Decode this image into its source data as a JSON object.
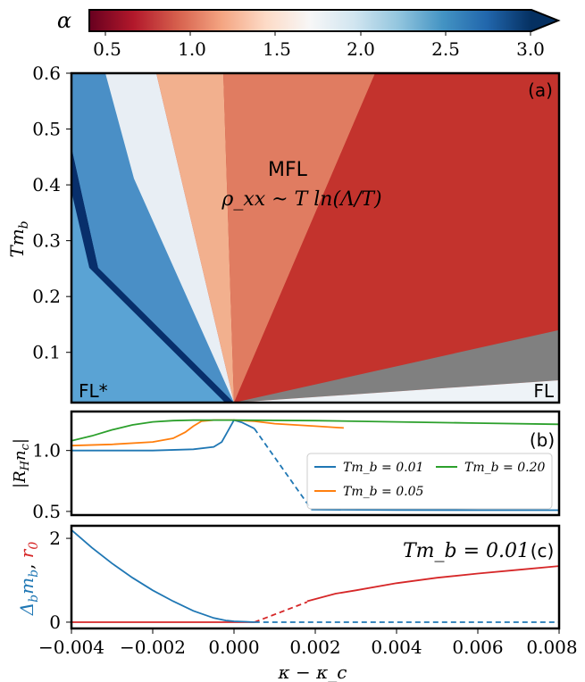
{
  "colors": {
    "colormap": [
      "#67001f",
      "#b2182b",
      "#d6604d",
      "#f4a582",
      "#fddbc7",
      "#f7f7f7",
      "#d1e5f0",
      "#92c5de",
      "#4393c3",
      "#2166ac",
      "#053061"
    ],
    "gray_region": "#808080",
    "series_blue": "#1f77b4",
    "series_orange": "#ff7f0e",
    "series_green": "#2ca02c",
    "series_red": "#d62728"
  },
  "colorbar": {
    "label": "α",
    "ticks": [
      "0.5",
      "1.0",
      "1.5",
      "2.0",
      "2.5",
      "3.0"
    ],
    "tick_values": [
      0.5,
      1.0,
      1.5,
      2.0,
      2.5,
      3.0
    ],
    "range": [
      0.4,
      3.0
    ],
    "extend": "max"
  },
  "chart_data": [
    {
      "panel": "(a)",
      "type": "heatmap",
      "xlim": [
        -0.004,
        0.008
      ],
      "ylim": [
        0.01,
        0.6
      ],
      "ylabel": "Tm_b",
      "yticks": [
        "0.1",
        "0.2",
        "0.3",
        "0.4",
        "0.5",
        "0.6"
      ],
      "ytick_values": [
        0.1,
        0.2,
        0.3,
        0.4,
        0.5,
        0.6
      ],
      "annotations": {
        "center_title": "MFL",
        "center_formula": "ρ_xx ~ T ln(Λ/T)",
        "bottom_left": "FL*",
        "bottom_right": "FL"
      },
      "critical_point": [
        0.0,
        0.01
      ],
      "dark_blue_ridge_top_x": -0.004,
      "dark_blue_ridge_top_y": 0.42,
      "gray_region_upper_T_at_xmax": 0.14,
      "gray_region_lower_T_at_xmax": 0.05
    },
    {
      "panel": "(b)",
      "type": "line",
      "ylabel": "|R_H n_c|",
      "ylim": [
        0.47,
        1.32
      ],
      "yticks": [
        "0.5",
        "1.0"
      ],
      "ytick_values": [
        0.5,
        1.0
      ],
      "legend_placement": "lower-right",
      "series": [
        {
          "name": "Tm_b = 0.01",
          "color": "#1f77b4",
          "solid": {
            "x": [
              -0.004,
              -0.003,
              -0.002,
              -0.001,
              -0.0005,
              -0.0003,
              -0.0001,
              0.0,
              0.0002,
              0.0005
            ],
            "y": [
              1.0,
              1.0,
              1.0,
              1.01,
              1.03,
              1.07,
              1.19,
              1.25,
              1.23,
              1.18
            ]
          },
          "dashed": {
            "x": [
              0.0005,
              0.0019
            ],
            "y": [
              1.18,
              0.52
            ]
          },
          "solid_tail": {
            "x": [
              0.0019,
              0.004,
              0.006,
              0.008
            ],
            "y": [
              0.515,
              0.512,
              0.51,
              0.51
            ]
          }
        },
        {
          "name": "Tm_b = 0.05",
          "color": "#ff7f0e",
          "solid": {
            "x": [
              -0.004,
              -0.003,
              -0.002,
              -0.0015,
              -0.0012,
              -0.001,
              -0.0008,
              -0.0005,
              0.0,
              0.0005,
              0.001,
              0.0015,
              0.002,
              0.0027
            ],
            "y": [
              1.04,
              1.05,
              1.07,
              1.1,
              1.15,
              1.2,
              1.24,
              1.25,
              1.25,
              1.24,
              1.22,
              1.21,
              1.2,
              1.185
            ]
          }
        },
        {
          "name": "Tm_b = 0.20",
          "color": "#2ca02c",
          "solid": {
            "x": [
              -0.004,
              -0.0035,
              -0.003,
              -0.0025,
              -0.002,
              -0.0015,
              -0.001,
              -0.0005,
              0.0,
              0.002,
              0.004,
              0.006,
              0.008
            ],
            "y": [
              1.08,
              1.12,
              1.17,
              1.21,
              1.235,
              1.245,
              1.25,
              1.25,
              1.25,
              1.245,
              1.235,
              1.225,
              1.215
            ]
          }
        }
      ]
    },
    {
      "panel": "(c)",
      "type": "line",
      "xlabel": "κ − κ_c",
      "ylabel": "Δ_b m_b, r_0",
      "xlim": [
        -0.004,
        0.008
      ],
      "ylim": [
        -0.15,
        2.3
      ],
      "xticks": [
        "−0.004",
        "−0.002",
        "0.000",
        "0.002",
        "0.004",
        "0.006",
        "0.008"
      ],
      "xtick_values": [
        -0.004,
        -0.002,
        0.0,
        0.002,
        0.004,
        0.006,
        0.008
      ],
      "yticks": [
        "0",
        "2"
      ],
      "ytick_values": [
        0,
        2
      ],
      "annotation": "Tm_b = 0.01",
      "series": [
        {
          "name": "Δ_b m_b",
          "color": "#1f77b4",
          "solid": {
            "x": [
              -0.004,
              -0.0035,
              -0.003,
              -0.0025,
              -0.002,
              -0.0015,
              -0.001,
              -0.0005,
              -0.0002,
              0.0,
              0.0003,
              0.0005
            ],
            "y": [
              2.2,
              1.78,
              1.4,
              1.06,
              0.76,
              0.5,
              0.27,
              0.1,
              0.04,
              0.02,
              0.01,
              0.0
            ]
          },
          "dashed": {
            "x": [
              0.0005,
              0.008
            ],
            "y": [
              0.0,
              0.0
            ]
          }
        },
        {
          "name": "r_0",
          "color": "#d62728",
          "flat": {
            "x": [
              -0.004,
              0.0005
            ],
            "y": [
              0.0,
              0.0
            ]
          },
          "dashed": {
            "x": [
              0.0005,
              0.0018
            ],
            "y": [
              0.0,
              0.48
            ]
          },
          "solid": {
            "x": [
              0.0018,
              0.0025,
              0.003,
              0.004,
              0.005,
              0.006,
              0.007,
              0.008
            ],
            "y": [
              0.5,
              0.68,
              0.76,
              0.93,
              1.06,
              1.16,
              1.25,
              1.34
            ]
          }
        }
      ]
    }
  ]
}
